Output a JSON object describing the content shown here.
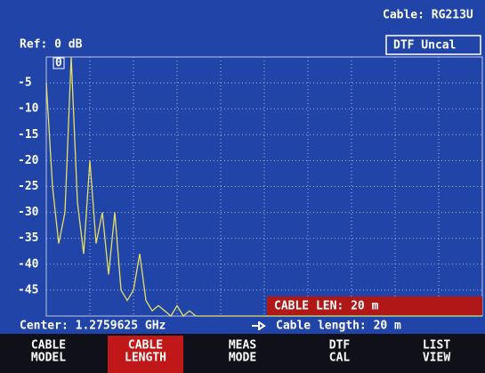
{
  "header": {
    "cable": "Cable: RG213U",
    "ref": "Ref: 0 dB",
    "status": "DTF Uncal"
  },
  "chart_data": {
    "type": "line",
    "marker_label": "0",
    "ylim": [
      -50,
      0
    ],
    "yticks": [
      -45,
      -40,
      -35,
      -30,
      -25,
      -20,
      -15,
      -10,
      -5
    ],
    "grid": true,
    "series": [
      {
        "name": null,
        "color": "#e8e060",
        "values": [
          -5,
          -25,
          -36,
          -30,
          0,
          -28,
          -38,
          -20,
          -36,
          -30,
          -42,
          -30,
          -45,
          -47,
          -45,
          -38,
          -47,
          -49,
          -48,
          -49,
          -50,
          -48,
          -50,
          -49,
          -50,
          -50,
          -50,
          -50,
          -50,
          -50,
          -50,
          -50,
          -50,
          -50,
          -50,
          -50,
          -50,
          -50,
          -50,
          -50,
          -50,
          -50,
          -50,
          -50,
          -50,
          -50,
          -50,
          -50,
          -50,
          -50,
          -50,
          -50,
          -50,
          -50,
          -50,
          -50,
          -50,
          -50,
          -50,
          -50,
          -50,
          -50,
          -50,
          -50,
          -50,
          -50,
          -50,
          -50,
          -50,
          -50,
          -50
        ]
      }
    ]
  },
  "input_box": "CABLE LEN: 20 m",
  "status_bar": {
    "center": "Center: 1.2759625 GHz",
    "cable_length": "Cable length: 20 m"
  },
  "softkeys": [
    [
      "CABLE",
      "MODEL"
    ],
    [
      "CABLE",
      "LENGTH"
    ],
    [
      "MEAS",
      "MODE"
    ],
    [
      "DTF",
      "CAL"
    ],
    [
      "LIST",
      "VIEW"
    ]
  ]
}
